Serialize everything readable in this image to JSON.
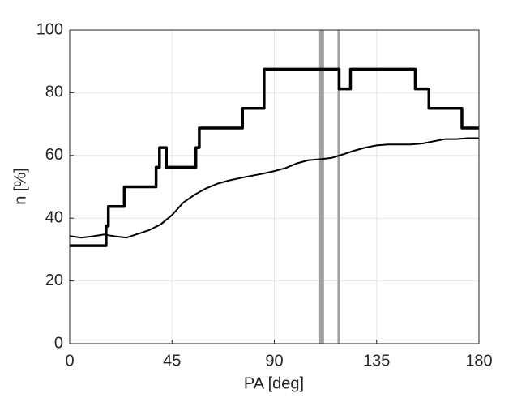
{
  "chart_data": {
    "type": "line",
    "xlabel": "PA [deg]",
    "ylabel": "n [%]",
    "xlim": [
      0,
      180
    ],
    "ylim": [
      0,
      100
    ],
    "xticks": [
      0,
      45,
      90,
      135,
      180
    ],
    "yticks": [
      0,
      20,
      40,
      60,
      80,
      100
    ],
    "grid": true,
    "vlines": [
      110.8,
      118.3
    ],
    "vline_color": "#a0a0a0",
    "series": [
      {
        "color": "#000000",
        "x": [
          0,
          16,
          16,
          17,
          17,
          24,
          24,
          38,
          38,
          39.5,
          39.5,
          42.5,
          42.5,
          55.5,
          55.5,
          57,
          57,
          76,
          76,
          85.5,
          85.5,
          118.5,
          118.5,
          123.5,
          123.5,
          152,
          152,
          158,
          158,
          172.5,
          172.5,
          180
        ],
        "values": [
          31.25,
          31.25,
          37.5,
          37.5,
          43.75,
          43.75,
          50,
          50,
          56.25,
          56.25,
          62.5,
          62.5,
          56.25,
          56.25,
          62.5,
          62.5,
          68.75,
          68.75,
          75,
          75,
          87.5,
          87.5,
          81.25,
          81.25,
          87.5,
          87.5,
          81.25,
          81.25,
          75,
          75,
          68.75,
          68.75
        ]
      },
      {
        "color": "#000000",
        "x": [
          0,
          5,
          10,
          15,
          20,
          25,
          30,
          35,
          40,
          45,
          50,
          55,
          60,
          65,
          70,
          75,
          80,
          85,
          90,
          95,
          100,
          105,
          110,
          115,
          120,
          125,
          130,
          135,
          140,
          145,
          150,
          155,
          160,
          165,
          170,
          175,
          180
        ],
        "values": [
          34.3,
          33.8,
          34.2,
          34.8,
          34.2,
          33.8,
          35,
          36.2,
          38,
          41,
          45,
          47.5,
          49.5,
          51,
          52,
          52.8,
          53.5,
          54.2,
          55,
          56,
          57.5,
          58.5,
          58.8,
          59.2,
          60.3,
          61.5,
          62.5,
          63.2,
          63.5,
          63.5,
          63.5,
          63.8,
          64.5,
          65.2,
          65.2,
          65.5,
          65.5
        ]
      }
    ]
  }
}
